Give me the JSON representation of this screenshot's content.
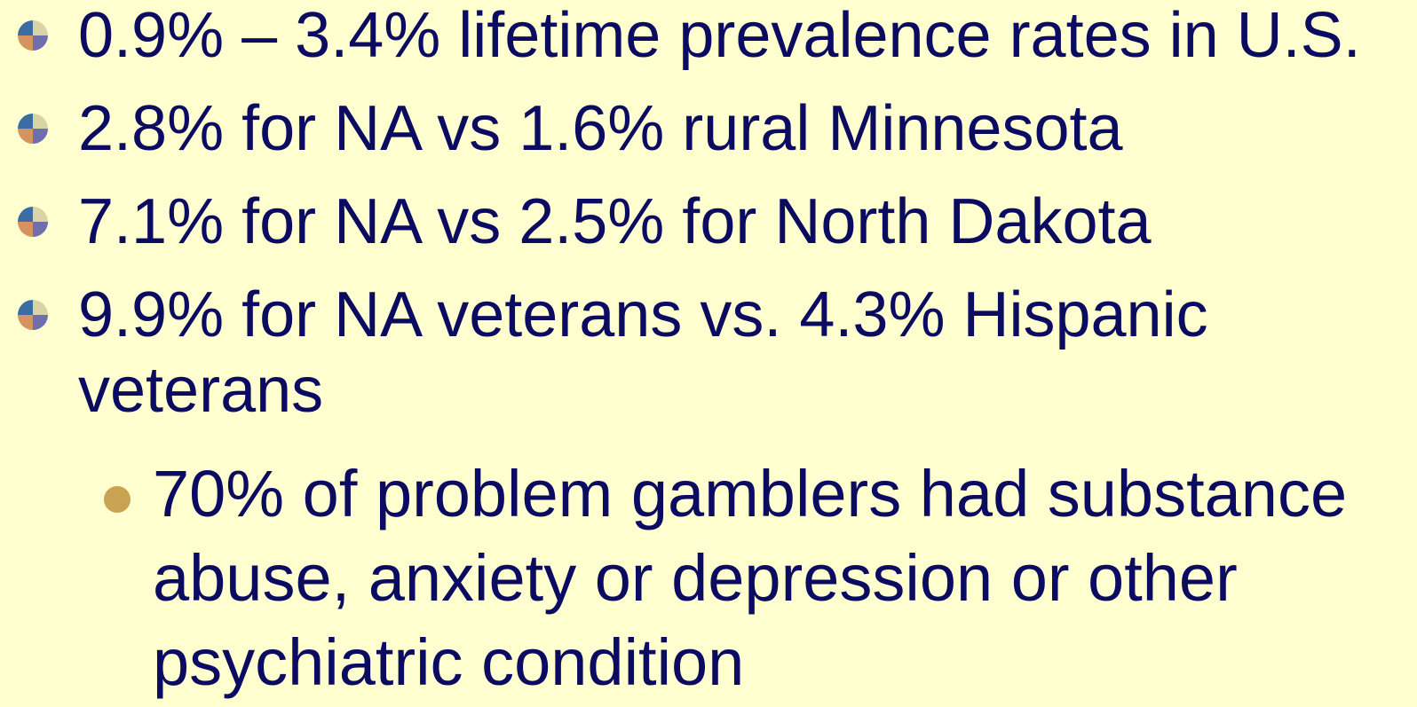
{
  "bullets": [
    "0.9% – 3.4% lifetime prevalence rates in U.S.",
    "2.8% for NA vs 1.6% rural Minnesota",
    "7.1% for NA vs 2.5% for North Dakota",
    "9.9% for NA veterans vs. 4.3% Hispanic veterans"
  ],
  "sub_bullets": [
    "70% of problem gamblers had substance abuse, anxiety or depression or other psychiatric condition"
  ]
}
